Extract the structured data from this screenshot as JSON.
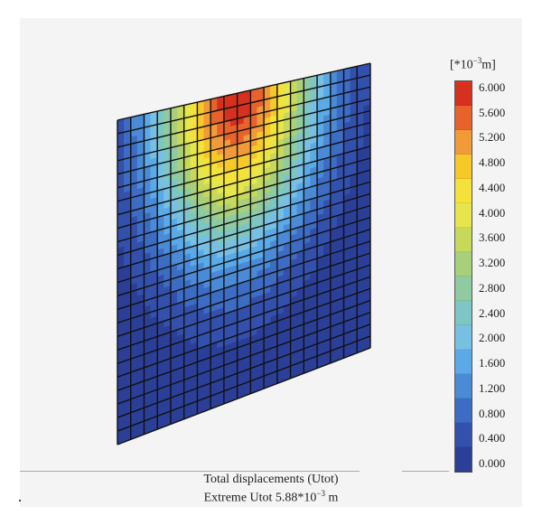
{
  "legend": {
    "unit_open": "[*10",
    "unit_exp": "−3",
    "unit_close": "m]",
    "values": [
      "6.000",
      "5.600",
      "5.200",
      "4.800",
      "4.400",
      "4.000",
      "3.600",
      "3.200",
      "2.800",
      "2.400",
      "2.000",
      "1.600",
      "1.200",
      "0.800",
      "0.400",
      "0.000"
    ],
    "colors": [
      "#d7301f",
      "#e8622c",
      "#f29a3a",
      "#f6c928",
      "#f4e23b",
      "#e6e64a",
      "#c8d85a",
      "#a8cf7a",
      "#8fcaa0",
      "#7dc6c4",
      "#78c0e3",
      "#5aaae8",
      "#4a8ad6",
      "#3d6cc4",
      "#3350ad",
      "#2b3f98"
    ]
  },
  "caption": {
    "line1": "Total displacements (Utot)",
    "line2_prefix": "Extreme Utot 5.88*10",
    "line2_exp": "−3",
    "line2_suffix": " m"
  },
  "field": {
    "min": 0,
    "max": 6,
    "extreme": 5.88,
    "nx": 19,
    "ny": 24
  }
}
